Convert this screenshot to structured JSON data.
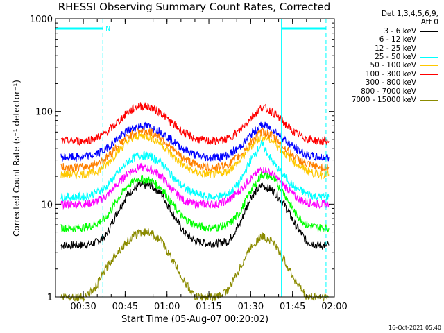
{
  "chart_data": {
    "type": "line",
    "title": "RHESSI Observing Summary Count Rates, Corrected",
    "xlabel": "Start Time (05-Aug-07 00:20:02)",
    "ylabel": "Corrected Count Rate (s⁻¹ detector⁻¹)",
    "yscale": "log",
    "ylim": [
      1,
      1000
    ],
    "xlim": [
      "00:20:02",
      "02:00:00"
    ],
    "x_ticks": [
      "00:30",
      "00:45",
      "01:00",
      "01:15",
      "01:30",
      "01:45",
      "02:00"
    ],
    "y_ticks": [
      "1",
      "10",
      "100",
      "1000"
    ],
    "legend_header": "Det 1,3,4,5,6,9, Att 0",
    "legend_header_lines": [
      "Det 1,3,4,5,6,9,",
      "Att 0"
    ],
    "legend_position": "right",
    "x": [
      "00:22",
      "00:26",
      "00:30",
      "00:34",
      "00:38",
      "00:42",
      "00:46",
      "00:50",
      "00:54",
      "00:58",
      "01:02",
      "01:06",
      "01:10",
      "01:14",
      "01:18",
      "01:22",
      "01:26",
      "01:30",
      "01:34",
      "01:38",
      "01:42",
      "01:46",
      "01:50",
      "01:54",
      "01:58"
    ],
    "series": [
      {
        "name": "3 - 6 keV",
        "color": "#000000",
        "values": [
          3.6,
          3.6,
          3.6,
          3.8,
          4.5,
          8,
          13,
          16,
          16,
          13,
          8,
          5,
          4,
          3.8,
          3.8,
          4,
          6,
          12,
          16,
          14,
          10,
          6,
          4,
          3.6,
          3.6
        ]
      },
      {
        "name": "6 - 12 keV",
        "color": "#ff00ff",
        "values": [
          10,
          10,
          10,
          10.5,
          12,
          16,
          22,
          25,
          24,
          20,
          14,
          11,
          10,
          10,
          10,
          11,
          14,
          19,
          24,
          21,
          16,
          12,
          10.5,
          10,
          10
        ]
      },
      {
        "name": "12 - 25 keV",
        "color": "#00ff00",
        "values": [
          5.5,
          5.5,
          5.6,
          6,
          7,
          11,
          16,
          19,
          18,
          15,
          10,
          7,
          6,
          5.6,
          5.6,
          6,
          8,
          14,
          21,
          19,
          13,
          8,
          6,
          5.6,
          5.5
        ]
      },
      {
        "name": "25 - 50 keV",
        "color": "#00ffff",
        "values": [
          12,
          12,
          12,
          13,
          15,
          21,
          29,
          34,
          33,
          28,
          20,
          15,
          13,
          12,
          12,
          13,
          17,
          30,
          45,
          28,
          20,
          15,
          13,
          12,
          12
        ]
      },
      {
        "name": "50 - 100 keV",
        "color": "#ffc800",
        "values": [
          21,
          21,
          21,
          22,
          26,
          36,
          48,
          55,
          53,
          45,
          33,
          26,
          22,
          21,
          21,
          23,
          29,
          42,
          54,
          48,
          36,
          28,
          23,
          21,
          21
        ]
      },
      {
        "name": "100 - 300 keV",
        "color": "#ff0000",
        "values": [
          48,
          48,
          48,
          51,
          58,
          75,
          98,
          115,
          112,
          96,
          74,
          59,
          51,
          48,
          48,
          51,
          62,
          85,
          112,
          98,
          75,
          58,
          51,
          48,
          48
        ]
      },
      {
        "name": "300 - 800 keV",
        "color": "#0000ff",
        "values": [
          32,
          32,
          32,
          34,
          39,
          50,
          62,
          70,
          68,
          60,
          48,
          39,
          34,
          32,
          32,
          34,
          41,
          56,
          72,
          64,
          50,
          40,
          34,
          32,
          32
        ]
      },
      {
        "name": "800 - 7000 keV",
        "color": "#ff8000",
        "values": [
          25,
          25,
          25,
          27,
          31,
          42,
          54,
          62,
          60,
          52,
          39,
          31,
          27,
          25,
          25,
          27,
          33,
          47,
          61,
          54,
          41,
          32,
          27,
          25,
          25
        ]
      },
      {
        "name": "7000 - 15000 keV",
        "color": "#8b8b00",
        "values": [
          1,
          1,
          1,
          1.2,
          2,
          3,
          4,
          5,
          5,
          4,
          2.5,
          1.5,
          1,
          1,
          1,
          1.2,
          2,
          3.5,
          4.5,
          4,
          2.5,
          1.5,
          1,
          1,
          1
        ]
      }
    ],
    "annotations": [
      {
        "label": "N",
        "color": "#00ffff",
        "type": "night-bar",
        "x_start": "00:20:02",
        "x_end": "00:37:00"
      },
      {
        "type": "night-bar",
        "color": "#00ffff",
        "x_start": "01:41:00",
        "x_end": "01:57:00"
      }
    ],
    "timestamp": "16-Oct-2021 05:40"
  }
}
